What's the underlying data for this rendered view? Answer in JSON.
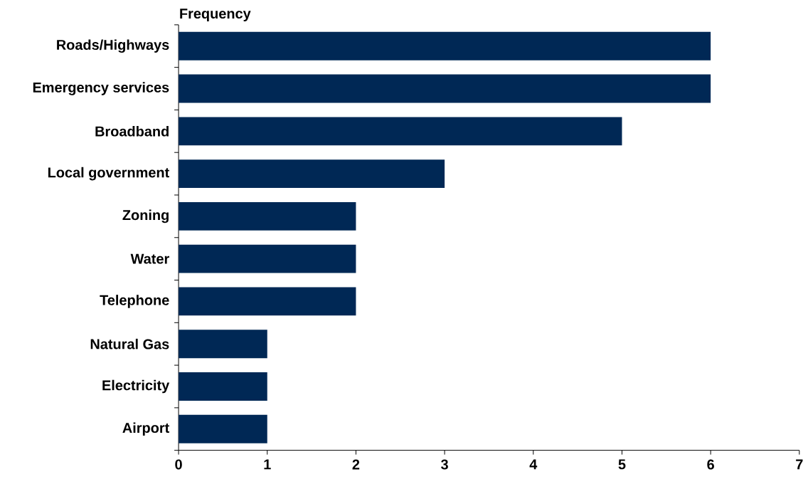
{
  "chart_data": {
    "type": "bar",
    "orientation": "horizontal",
    "xlabel": "Frequency",
    "categories": [
      "Roads/Highways",
      "Emergency services",
      "Broadband",
      "Local government",
      "Zoning",
      "Water",
      "Telephone",
      "Natural Gas",
      "Electricity",
      "Airport"
    ],
    "values": [
      6,
      6,
      5,
      3,
      2,
      2,
      2,
      1,
      1,
      1
    ],
    "color": "#002855",
    "xlim": [
      0,
      7
    ],
    "xticks": [
      0,
      1,
      2,
      3,
      4,
      5,
      6,
      7
    ],
    "grid": false
  }
}
